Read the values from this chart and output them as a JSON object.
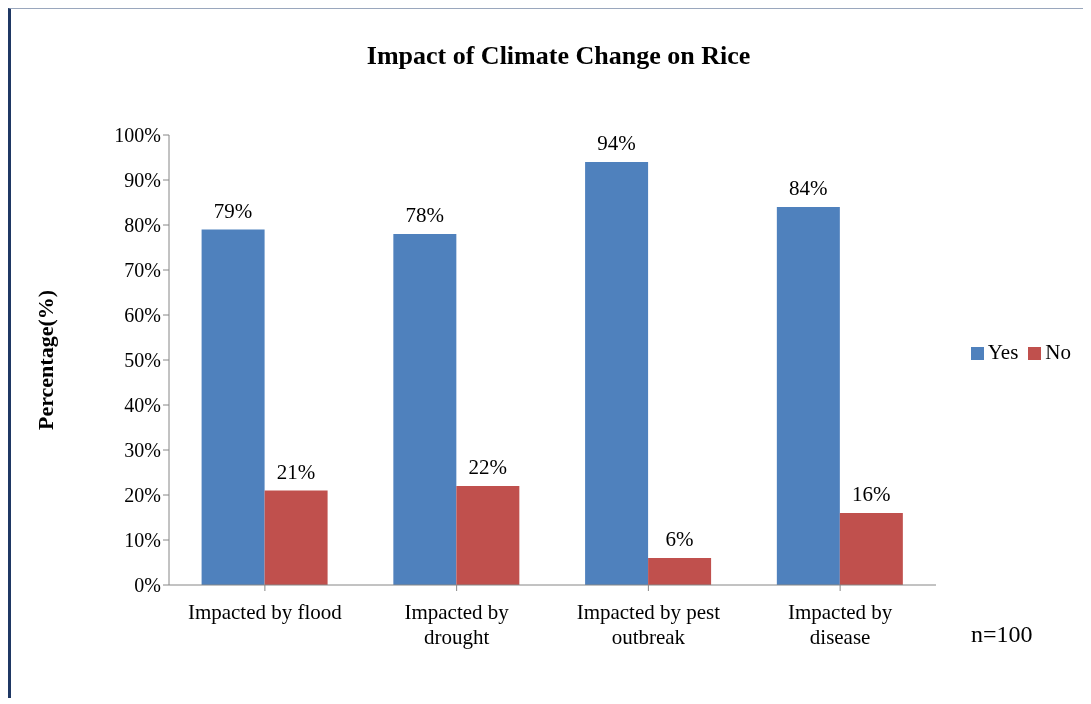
{
  "chart_data": {
    "type": "bar",
    "title": "Impact of Climate Change on Rice",
    "ylabel": "Percentage(%)",
    "categories": [
      "Impacted by flood",
      "Impacted by drought",
      "Impacted by pest outbreak",
      "Impacted by disease"
    ],
    "series": [
      {
        "name": "Yes",
        "color": "#4f81bd",
        "values": [
          79,
          78,
          94,
          84
        ],
        "value_labels": [
          "79%",
          "78%",
          "94%",
          "84%"
        ]
      },
      {
        "name": "No",
        "color": "#c0504d",
        "values": [
          21,
          22,
          6,
          16
        ],
        "value_labels": [
          "21%",
          "22%",
          "6%",
          "16%"
        ]
      }
    ],
    "ylim": [
      0,
      100
    ],
    "yticks": [
      {
        "value": 0,
        "label": "0%"
      },
      {
        "value": 10,
        "label": "10%"
      },
      {
        "value": 20,
        "label": "20%"
      },
      {
        "value": 30,
        "label": "30%"
      },
      {
        "value": 40,
        "label": "40%"
      },
      {
        "value": 50,
        "label": "50%"
      },
      {
        "value": 60,
        "label": "60%"
      },
      {
        "value": 70,
        "label": "70%"
      },
      {
        "value": 80,
        "label": "80%"
      },
      {
        "value": 90,
        "label": "90%"
      },
      {
        "value": 100,
        "label": "100%"
      }
    ],
    "legend": "right",
    "annotations": [
      "n=100"
    ]
  }
}
